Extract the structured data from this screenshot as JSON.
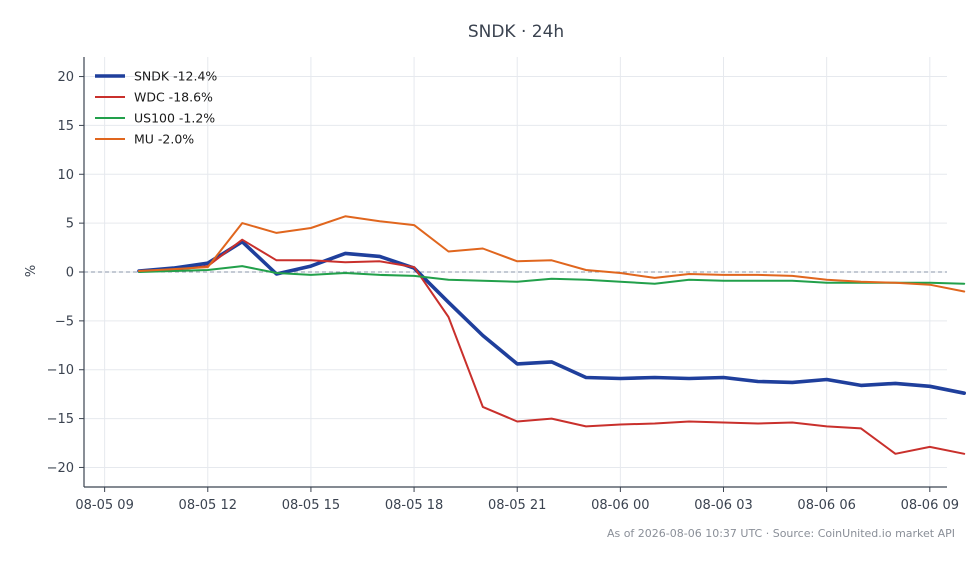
{
  "chart_data": {
    "type": "line",
    "title": "SNDK · 24h",
    "ylabel": "%",
    "xlabel": "",
    "footnote": "As of 2026-08-06 10:37 UTC · Source: CoinUnited.io market API",
    "xlim": [
      -0.6,
      24.5
    ],
    "ylim": [
      -22,
      22
    ],
    "yticks": [
      20,
      15,
      10,
      5,
      0,
      -5,
      -10,
      -15,
      -20
    ],
    "xticks": [
      {
        "x": 0,
        "label": "08-05 09"
      },
      {
        "x": 3,
        "label": "08-05 12"
      },
      {
        "x": 6,
        "label": "08-05 15"
      },
      {
        "x": 9,
        "label": "08-05 18"
      },
      {
        "x": 12,
        "label": "08-05 21"
      },
      {
        "x": 15,
        "label": "08-06 00"
      },
      {
        "x": 18,
        "label": "08-06 03"
      },
      {
        "x": 21,
        "label": "08-06 06"
      },
      {
        "x": 24,
        "label": "08-06 09"
      }
    ],
    "x": [
      1,
      2,
      3,
      4,
      5,
      6,
      7,
      8,
      9,
      10,
      11,
      12,
      13,
      14,
      15,
      16,
      17,
      18,
      19,
      20,
      21,
      22,
      23,
      24,
      25
    ],
    "zero_line": true,
    "grid": true,
    "legend_position": "top-left",
    "series": [
      {
        "name": "SNDK -12.4%",
        "color": "#1f3f9c",
        "width": 3.6,
        "values": [
          0.1,
          0.4,
          0.9,
          3.1,
          -0.2,
          0.6,
          1.9,
          1.6,
          0.4,
          -3.1,
          -6.5,
          -9.4,
          -9.2,
          -10.8,
          -10.9,
          -10.8,
          -10.9,
          -10.8,
          -11.2,
          -11.3,
          -11.0,
          -11.6,
          -11.4,
          -11.7,
          -12.4
        ]
      },
      {
        "name": "WDC -18.6%",
        "color": "#c9302c",
        "width": 2.0,
        "values": [
          0.1,
          0.2,
          0.6,
          3.3,
          1.2,
          1.2,
          1.0,
          1.1,
          0.5,
          -4.6,
          -13.8,
          -15.3,
          -15.0,
          -15.8,
          -15.6,
          -15.5,
          -15.3,
          -15.4,
          -15.5,
          -15.4,
          -15.8,
          -16.0,
          -18.6,
          -17.9,
          -18.6
        ]
      },
      {
        "name": "US100 -1.2%",
        "color": "#22a04b",
        "width": 2.0,
        "values": [
          0.0,
          0.1,
          0.2,
          0.6,
          -0.1,
          -0.3,
          -0.1,
          -0.3,
          -0.4,
          -0.8,
          -0.9,
          -1.0,
          -0.7,
          -0.8,
          -1.0,
          -1.2,
          -0.8,
          -0.9,
          -0.9,
          -0.9,
          -1.1,
          -1.1,
          -1.1,
          -1.1,
          -1.2
        ]
      },
      {
        "name": "MU -2.0%",
        "color": "#e0661e",
        "width": 2.0,
        "values": [
          0.1,
          0.3,
          0.5,
          5.0,
          4.0,
          4.5,
          5.7,
          5.2,
          4.8,
          2.1,
          2.4,
          1.1,
          1.2,
          0.2,
          -0.1,
          -0.6,
          -0.2,
          -0.3,
          -0.3,
          -0.4,
          -0.8,
          -1.0,
          -1.1,
          -1.3,
          -2.0
        ]
      }
    ]
  }
}
